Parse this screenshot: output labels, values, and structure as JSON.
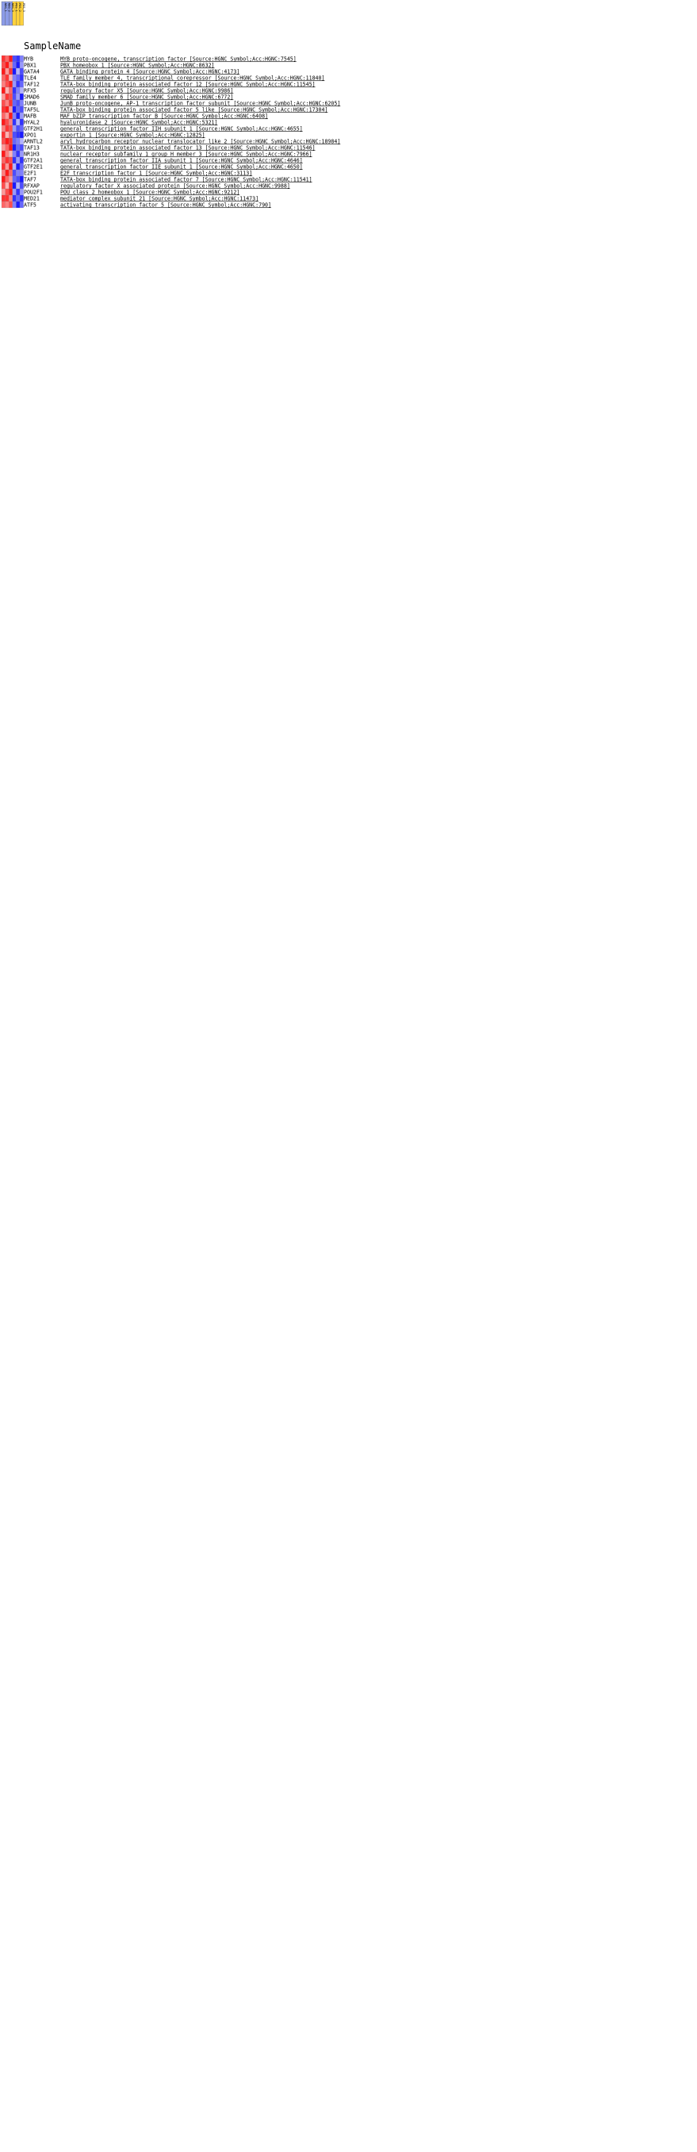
{
  "chart_data": {
    "type": "heatmap",
    "column_header": "SampleName",
    "columns": [
      "NEG_1",
      "NEG_2",
      "NEG_3",
      "POS_1",
      "POS_2",
      "POS_3"
    ],
    "column_colors": [
      "#8c9ce8",
      "#8c9ce8",
      "#8c9ce8",
      "#ffd23c",
      "#ffd23c",
      "#ffd23c"
    ],
    "color_scale": {
      "low": "#0000ff",
      "mid": "#ffffff",
      "high": "#ff0000"
    },
    "rows": [
      {
        "gene": "MYB",
        "desc": "MYB proto-oncogene, transcription factor [Source:HGNC Symbol;Acc:HGNC:7545]",
        "values": [
          0.8,
          0.6,
          0.9,
          -0.7,
          -0.8,
          -0.5
        ]
      },
      {
        "gene": "PBX1",
        "desc": "PBX homeobox 1 [Source:HGNC Symbol;Acc:HGNC:8632]",
        "values": [
          0.7,
          0.9,
          0.5,
          -0.6,
          -0.9,
          -0.4
        ]
      },
      {
        "gene": "GATA4",
        "desc": "GATA binding protein 4 [Source:HGNC Symbol;Acc:HGNC:4173]",
        "values": [
          0.9,
          0.4,
          0.8,
          -0.9,
          -0.3,
          -0.7
        ]
      },
      {
        "gene": "TLE4",
        "desc": "TLE family member 4, transcriptional corepressor [Source:HGNC Symbol;Acc:HGNC:11840]",
        "values": [
          0.6,
          0.8,
          0.3,
          -0.5,
          -0.6,
          -0.8
        ]
      },
      {
        "gene": "TAF12",
        "desc": "TATA-box binding protein associated factor 12 [Source:HGNC Symbol;Acc:HGNC:11545]",
        "values": [
          0.5,
          0.7,
          0.9,
          -0.4,
          -0.8,
          -0.6
        ]
      },
      {
        "gene": "RFX5",
        "desc": "regulatory factor X5 [Source:HGNC Symbol;Acc:HGNC:9986]",
        "values": [
          0.9,
          0.3,
          0.6,
          -0.8,
          -0.5,
          -0.3
        ]
      },
      {
        "gene": "SMAD6",
        "desc": "SMAD family member 6 [Source:HGNC Symbol;Acc:HGNC:6772]",
        "values": [
          0.4,
          0.8,
          0.7,
          -0.7,
          -0.4,
          -0.9
        ]
      },
      {
        "gene": "JUNB",
        "desc": "JunB proto-oncogene, AP-1 transcription factor subunit [Source:HGNC Symbol;Acc:HGNC:6205]",
        "values": [
          0.7,
          0.5,
          0.8,
          -0.6,
          -0.7,
          -0.5
        ]
      },
      {
        "gene": "TAF5L",
        "desc": "TATA-box binding protein associated factor 5 like [Source:HGNC Symbol;Acc:HGNC:17304]",
        "values": [
          0.8,
          0.9,
          0.4,
          -0.9,
          -0.6,
          -0.7
        ]
      },
      {
        "gene": "MAFB",
        "desc": "MAF bZIP transcription factor B [Source:HGNC Symbol;Acc:HGNC:6408]",
        "values": [
          0.6,
          0.4,
          0.9,
          -0.5,
          -0.9,
          -0.4
        ]
      },
      {
        "gene": "HYAL2",
        "desc": "hyaluronidase 2 [Source:HGNC Symbol;Acc:HGNC:5321]",
        "values": [
          0.9,
          0.7,
          0.5,
          -0.8,
          -0.3,
          -0.8
        ]
      },
      {
        "gene": "GTF2H1",
        "desc": "general transcription factor IIH subunit 1 [Source:HGNC Symbol;Acc:HGNC:4655]",
        "values": [
          0.5,
          0.8,
          0.7,
          -0.4,
          -0.7,
          -0.6
        ]
      },
      {
        "gene": "XPO1",
        "desc": "exportin 1 [Source:HGNC Symbol;Acc:HGNC:12825]",
        "values": [
          0.8,
          0.3,
          0.6,
          -0.7,
          -0.8,
          -0.9
        ]
      },
      {
        "gene": "ARNTL2",
        "desc": "aryl hydrocarbon receptor nuclear translocator like 2 [Source:HGNC Symbol;Acc:HGNC:18984]",
        "values": [
          0.7,
          0.9,
          0.8,
          -0.6,
          -0.5,
          -0.3
        ]
      },
      {
        "gene": "TAF13",
        "desc": "TATA-box binding protein associated factor 13 [Source:HGNC Symbol;Acc:HGNC:11546]",
        "values": [
          0.4,
          0.6,
          0.9,
          -0.9,
          -0.6,
          -0.7
        ]
      },
      {
        "gene": "NR1H3",
        "desc": "nuclear receptor subfamily 1 group H member 3 [Source:HGNC Symbol;Acc:HGNC:7966]",
        "values": [
          0.9,
          0.5,
          0.3,
          -0.5,
          -0.8,
          -0.4
        ]
      },
      {
        "gene": "GTF2A1",
        "desc": "general transcription factor IIA subunit 1 [Source:HGNC Symbol;Acc:HGNC:4646]",
        "values": [
          0.6,
          0.8,
          0.7,
          -0.8,
          -0.4,
          -0.8
        ]
      },
      {
        "gene": "GTF2E1",
        "desc": "general transcription factor IIE subunit 1 [Source:HGNC Symbol;Acc:HGNC:4650]",
        "values": [
          0.8,
          0.4,
          0.9,
          -0.3,
          -0.9,
          -0.6
        ]
      },
      {
        "gene": "E2F1",
        "desc": "E2F transcription factor 1 [Source:HGNC Symbol;Acc:HGNC:3113]",
        "values": [
          0.5,
          0.9,
          0.6,
          -0.7,
          -0.5,
          -0.5
        ]
      },
      {
        "gene": "TAF7",
        "desc": "TATA-box binding protein associated factor 7 [Source:HGNC Symbol;Acc:HGNC:11541]",
        "values": [
          0.9,
          0.6,
          0.4,
          -0.6,
          -0.7,
          -0.9
        ]
      },
      {
        "gene": "RFXAP",
        "desc": "regulatory factor X associated protein [Source:HGNC Symbol;Acc:HGNC:9988]",
        "values": [
          0.7,
          0.3,
          0.8,
          -0.9,
          -0.3,
          -0.7
        ]
      },
      {
        "gene": "POU2F1",
        "desc": "POU class 2 homeobox 1 [Source:HGNC Symbol;Acc:HGNC:9212]",
        "values": [
          0.4,
          0.7,
          0.9,
          -0.4,
          -0.8,
          -0.4
        ]
      },
      {
        "gene": "MED21",
        "desc": "mediator complex subunit 21 [Source:HGNC Symbol;Acc:HGNC:11473]",
        "values": [
          0.8,
          0.8,
          0.5,
          -0.8,
          -0.6,
          -0.8
        ]
      },
      {
        "gene": "ATF5",
        "desc": "activating transcription factor 5 [Source:HGNC Symbol;Acc:HGNC:790]",
        "values": [
          0.6,
          0.5,
          0.7,
          -0.5,
          -0.9,
          -0.6
        ]
      }
    ]
  }
}
